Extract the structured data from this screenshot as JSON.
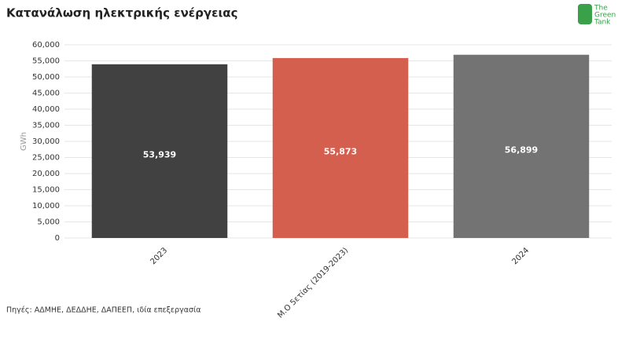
{
  "chart_data": {
    "type": "bar",
    "title": "Κατανάλωση ηλεκτρικής ενέργειας",
    "y_label": "GWh",
    "categories": [
      "2023",
      "Μ.Ο 5ετίας (2019-2023)",
      "2024"
    ],
    "values": [
      53939,
      55873,
      56899
    ],
    "value_labels": [
      "53,939",
      "55,873",
      "56,899"
    ],
    "colors": [
      "#414141",
      "#d45f4f",
      "#737373"
    ],
    "ylim": [
      0,
      60000
    ],
    "yticks": [
      0,
      {
        "value": 5000,
        "label": "5,000"
      },
      {
        "value": 10000,
        "label": "10,000"
      },
      {
        "value": 15000,
        "label": "15,000"
      },
      {
        "value": 20000,
        "label": "20,000"
      },
      {
        "value": 25000,
        "label": "25,000"
      },
      {
        "value": 30000,
        "label": "30,000"
      },
      {
        "value": 35000,
        "label": "35,000"
      },
      {
        "value": 40000,
        "label": "40,000"
      },
      {
        "value": 45000,
        "label": "45,000"
      },
      {
        "value": 50000,
        "label": "50,000"
      },
      {
        "value": 55000,
        "label": "55,000"
      },
      {
        "value": 60000,
        "label": "60,000"
      }
    ],
    "grid": true,
    "source": "Πηγές: ΑΔΜΗΕ, ΔΕΔΔΗΕ, ΔΑΠΕΕΠ, ιδία επεξεργασία",
    "logo": [
      "The",
      "Green",
      "Tank"
    ]
  }
}
